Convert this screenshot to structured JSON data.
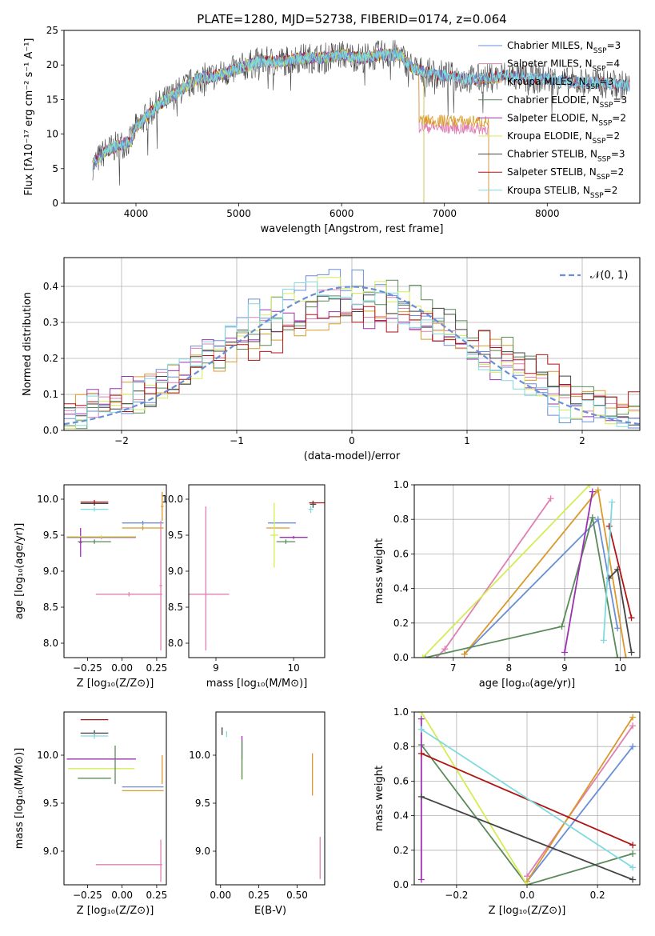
{
  "title": "PLATE=1280, MJD=52738, FIBERID=0174, z=0.064",
  "colors": {
    "Chabrier MILES": "#6a8ed8",
    "Salpeter MILES": "#e07fb3",
    "Kroupa MILES": "#d99a2a",
    "Chabrier ELODIE": "#5a8a5a",
    "Salpeter ELODIE": "#9b30b0",
    "Kroupa ELODIE": "#d4ec55",
    "Chabrier STELIB": "#444444",
    "Salpeter STELIB": "#b01515",
    "Kroupa STELIB": "#7edbde"
  },
  "chart_data": [
    {
      "type": "line",
      "panel": "spectrum",
      "title": "PLATE=1280, MJD=52738, FIBERID=0174, z=0.064",
      "xlabel": "wavelength [Angstrom, rest frame]",
      "ylabel": "Flux [fλ10⁻¹⁷ erg cm⁻² s⁻¹ A⁻¹]",
      "xlim": [
        3300,
        8900
      ],
      "ylim": [
        0,
        25
      ],
      "xticks": [
        4000,
        5000,
        6000,
        7000,
        8000
      ],
      "yticks": [
        0,
        5,
        10,
        15,
        20,
        25
      ],
      "legend_position": "top-right",
      "legend": [
        "Chabrier MILES, N_SSP=3",
        "Salpeter MILES, N_SSP=4",
        "Kroupa MILES, N_SSP=3",
        "Chabrier ELODIE, N_SSP=3",
        "Salpeter ELODIE, N_SSP=2",
        "Kroupa ELODIE, N_SSP=2",
        "Chabrier STELIB, N_SSP=3",
        "Salpeter STELIB, N_SSP=2",
        "Kroupa STELIB, N_SSP=2"
      ],
      "continuum_x": [
        3580,
        3700,
        3850,
        3950,
        4000,
        4100,
        4200,
        4400,
        4600,
        4800,
        5000,
        5200,
        5400,
        5600,
        5800,
        6000,
        6200,
        6400,
        6560,
        6700,
        6800,
        7000,
        7200,
        7400,
        7600,
        7800,
        8000,
        8200,
        8400,
        8800
      ],
      "continuum_y": [
        5.5,
        7.5,
        8.5,
        9,
        11,
        12.5,
        14,
        16,
        18,
        18.5,
        19.5,
        20.5,
        20.5,
        21,
        21,
        21.5,
        21,
        21.5,
        21.5,
        19.5,
        19,
        18.5,
        18,
        18,
        18.5,
        18,
        18,
        17.5,
        17.5,
        17
      ],
      "model_ends": [
        {
          "name": "Salpeter MILES",
          "end": 7430,
          "tail_level": 11
        },
        {
          "name": "Kroupa MILES",
          "end": 7430,
          "tail_level": 12
        },
        {
          "name": "Chabrier ELODIE",
          "end": 6800,
          "tail_level": null
        },
        {
          "name": "Salpeter ELODIE",
          "end": 6800,
          "tail_level": null
        },
        {
          "name": "Kroupa ELODIE",
          "end": 6800,
          "tail_level": null
        }
      ]
    },
    {
      "type": "histogram",
      "panel": "residuals",
      "xlabel": "(data-model)/error",
      "ylabel": "Normed distribution",
      "xlim": [
        -2.5,
        2.5
      ],
      "ylim": [
        0,
        0.48
      ],
      "xticks": [
        -2,
        -1,
        0,
        1,
        2
      ],
      "yticks": [
        0.0,
        0.1,
        0.2,
        0.3,
        0.4
      ],
      "grid": true,
      "legend_position": "top-right",
      "legend": [
        "𝒩(0, 1)"
      ],
      "reference_curve": {
        "name": "𝒩(0, 1)",
        "mean": 0,
        "sigma": 1,
        "color": "#6a8ed8"
      }
    },
    {
      "type": "errorbar",
      "panel": "age-vs-Z",
      "xlabel": "Z [log₁₀(Z/Z⊙)]",
      "ylabel": "age  [log₁₀(age/yr)]",
      "xlim": [
        -0.42,
        0.32
      ],
      "ylim": [
        7.8,
        10.2
      ],
      "xticks": [
        -0.25,
        0.0,
        0.25
      ],
      "yticks": [
        8.0,
        8.5,
        9.0,
        9.5,
        10.0
      ],
      "points": [
        {
          "name": "Chabrier MILES",
          "x": 0.15,
          "y": 9.67,
          "xerr": 0.15,
          "yerr": 0.03
        },
        {
          "name": "Salpeter MILES",
          "x": 0.05,
          "y": 8.68,
          "xerr": 0.24,
          "yerr": 0.03
        },
        {
          "name": "Salpeter MILES",
          "x": 0.28,
          "y": 8.8,
          "xerr": 0.01,
          "yerr": 0.9
        },
        {
          "name": "Kroupa MILES",
          "x": 0.15,
          "y": 9.6,
          "xerr": 0.15,
          "yerr": 0.03
        },
        {
          "name": "Kroupa MILES",
          "x": 0.29,
          "y": 9.9,
          "xerr": 0.01,
          "yerr": 0.2
        },
        {
          "name": "Chabrier ELODIE",
          "x": -0.2,
          "y": 9.41,
          "xerr": 0.12,
          "yerr": 0.03
        },
        {
          "name": "Salpeter ELODIE",
          "x": -0.15,
          "y": 9.47,
          "xerr": 0.25,
          "yerr": 0.02
        },
        {
          "name": "Salpeter ELODIE",
          "x": -0.3,
          "y": 9.4,
          "xerr": 0.01,
          "yerr": 0.2
        },
        {
          "name": "Kroupa ELODIE",
          "x": -0.15,
          "y": 9.48,
          "xerr": 0.25,
          "yerr": 0.02
        },
        {
          "name": "Chabrier STELIB",
          "x": -0.2,
          "y": 9.94,
          "xerr": 0.1,
          "yerr": 0.03
        },
        {
          "name": "Salpeter STELIB",
          "x": -0.2,
          "y": 9.96,
          "xerr": 0.1,
          "yerr": 0.03
        },
        {
          "name": "Kroupa STELIB",
          "x": -0.2,
          "y": 9.86,
          "xerr": 0.1,
          "yerr": 0.03
        }
      ]
    },
    {
      "type": "errorbar",
      "panel": "age-vs-mass",
      "xlabel": "mass [log₁₀(M/M⊙)]",
      "xlim": [
        8.65,
        10.4
      ],
      "ylim": [
        7.8,
        10.2
      ],
      "xticks": [
        9,
        10
      ],
      "yticks": [
        8.0,
        8.5,
        9.0,
        9.5,
        10.0
      ],
      "points": [
        {
          "name": "Salpeter MILES",
          "x": 8.87,
          "y": 8.68,
          "xerr": 0.3,
          "yerr": 0.0
        },
        {
          "name": "Salpeter MILES",
          "x": 8.87,
          "y": 8.9,
          "xerr": 0.0,
          "yerr": 1.0
        },
        {
          "name": "Chabrier MILES",
          "x": 9.85,
          "y": 9.67,
          "xerr": 0.18,
          "yerr": 0.0
        },
        {
          "name": "Kroupa MILES",
          "x": 9.8,
          "y": 9.6,
          "xerr": 0.15,
          "yerr": 0.0
        },
        {
          "name": "Chabrier ELODIE",
          "x": 9.9,
          "y": 9.41,
          "xerr": 0.12,
          "yerr": 0.03
        },
        {
          "name": "Salpeter ELODIE",
          "x": 10.0,
          "y": 9.47,
          "xerr": 0.18,
          "yerr": 0.02
        },
        {
          "name": "Kroupa ELODIE",
          "x": 9.75,
          "y": 9.5,
          "xerr": 0.05,
          "yerr": 0.45
        },
        {
          "name": "Chabrier STELIB",
          "x": 10.25,
          "y": 9.93,
          "xerr": 0.04,
          "yerr": 0.05
        },
        {
          "name": "Salpeter STELIB",
          "x": 10.3,
          "y": 9.95,
          "xerr": 0.1,
          "yerr": 0.0
        },
        {
          "name": "Kroupa STELIB",
          "x": 10.22,
          "y": 9.86,
          "xerr": 0.03,
          "yerr": 0.05
        }
      ]
    },
    {
      "type": "line",
      "panel": "mass-weight-vs-age",
      "xlabel": "age  [log₁₀(age/yr)]",
      "ylabel": "mass weight",
      "xlim": [
        6.3,
        10.35
      ],
      "ylim": [
        0,
        1
      ],
      "xticks": [
        7,
        8,
        9,
        10
      ],
      "yticks": [
        0.0,
        0.2,
        0.4,
        0.6,
        0.8,
        1.0
      ],
      "grid": true,
      "series": [
        {
          "name": "Chabrier MILES",
          "x": [
            7.2,
            9.6,
            9.95
          ],
          "y": [
            0.02,
            0.8,
            0.17
          ]
        },
        {
          "name": "Salpeter MILES",
          "x": [
            6.7,
            6.85,
            8.75
          ],
          "y": [
            0.0,
            0.05,
            0.92
          ]
        },
        {
          "name": "Kroupa MILES",
          "x": [
            7.2,
            9.6,
            10.1
          ],
          "y": [
            0.02,
            0.97,
            0.0
          ]
        },
        {
          "name": "Chabrier ELODIE",
          "x": [
            6.5,
            8.95,
            9.5,
            9.95
          ],
          "y": [
            0.0,
            0.18,
            0.81,
            0.0
          ]
        },
        {
          "name": "Salpeter ELODIE",
          "x": [
            9.0,
            9.5
          ],
          "y": [
            0.03,
            0.96
          ]
        },
        {
          "name": "Kroupa ELODIE",
          "x": [
            6.45,
            9.45
          ],
          "y": [
            0.0,
            1.0
          ]
        },
        {
          "name": "Chabrier STELIB",
          "x": [
            9.8,
            9.95,
            10.2
          ],
          "y": [
            0.46,
            0.51,
            0.03
          ]
        },
        {
          "name": "Salpeter STELIB",
          "x": [
            9.8,
            10.2
          ],
          "y": [
            0.76,
            0.23
          ]
        },
        {
          "name": "Kroupa STELIB",
          "x": [
            9.7,
            9.85
          ],
          "y": [
            0.1,
            0.9
          ]
        }
      ]
    },
    {
      "type": "errorbar",
      "panel": "mass-vs-Z",
      "xlabel": "Z [log₁₀(Z/Z⊙)]",
      "ylabel": "mass [log₁₀(M/M⊙)]",
      "xlim": [
        -0.42,
        0.32
      ],
      "ylim": [
        8.65,
        10.45
      ],
      "xticks": [
        -0.25,
        0.0,
        0.25
      ],
      "yticks": [
        9.0,
        9.5,
        10.0
      ],
      "points": [
        {
          "name": "Salpeter STELIB",
          "x": -0.2,
          "y": 10.37,
          "xerr": 0.1,
          "yerr": 0.0
        },
        {
          "name": "Chabrier STELIB",
          "x": -0.2,
          "y": 10.23,
          "xerr": 0.1,
          "yerr": 0.03
        },
        {
          "name": "Kroupa STELIB",
          "x": -0.2,
          "y": 10.2,
          "xerr": 0.1,
          "yerr": 0.03
        },
        {
          "name": "Salpeter ELODIE",
          "x": -0.15,
          "y": 9.96,
          "xerr": 0.25,
          "yerr": 0.0
        },
        {
          "name": "Kroupa ELODIE",
          "x": -0.15,
          "y": 9.86,
          "xerr": 0.24,
          "yerr": 0.0
        },
        {
          "name": "Chabrier ELODIE",
          "x": -0.2,
          "y": 9.76,
          "xerr": 0.12,
          "yerr": 0.0
        },
        {
          "name": "Chabrier ELODIE",
          "x": -0.05,
          "y": 9.9,
          "xerr": 0.0,
          "yerr": 0.2
        },
        {
          "name": "Chabrier MILES",
          "x": 0.15,
          "y": 9.67,
          "xerr": 0.15,
          "yerr": 0.0
        },
        {
          "name": "Kroupa MILES",
          "x": 0.15,
          "y": 9.63,
          "xerr": 0.15,
          "yerr": 0.0
        },
        {
          "name": "Kroupa MILES",
          "x": 0.29,
          "y": 9.85,
          "xerr": 0.0,
          "yerr": 0.15
        },
        {
          "name": "Salpeter MILES",
          "x": 0.05,
          "y": 8.86,
          "xerr": 0.24,
          "yerr": 0.0
        },
        {
          "name": "Salpeter MILES",
          "x": 0.28,
          "y": 8.9,
          "xerr": 0.0,
          "yerr": 0.22
        }
      ]
    },
    {
      "type": "errorbar",
      "panel": "mass-vs-EBV",
      "xlabel": "E(B-V)",
      "xlim": [
        -0.03,
        0.68
      ],
      "ylim": [
        8.65,
        10.45
      ],
      "xticks": [
        0.0,
        0.25,
        0.5
      ],
      "yticks": [
        9.0,
        9.5,
        10.0
      ],
      "points": [
        {
          "name": "Chabrier STELIB",
          "x": 0.01,
          "y": 10.25,
          "xerr": 0.0,
          "yerr": 0.04
        },
        {
          "name": "Kroupa STELIB",
          "x": 0.04,
          "y": 10.22,
          "xerr": 0.0,
          "yerr": 0.03
        },
        {
          "name": "Salpeter ELODIE",
          "x": 0.14,
          "y": 10.08,
          "xerr": 0.0,
          "yerr": 0.12
        },
        {
          "name": "Kroupa ELODIE",
          "x": 0.14,
          "y": 9.86,
          "xerr": 0.0,
          "yerr": 0.12
        },
        {
          "name": "Chabrier ELODIE",
          "x": 0.14,
          "y": 9.95,
          "xerr": 0.0,
          "yerr": 0.2
        },
        {
          "name": "Kroupa MILES",
          "x": 0.6,
          "y": 9.8,
          "xerr": 0.0,
          "yerr": 0.22
        },
        {
          "name": "Salpeter MILES",
          "x": 0.65,
          "y": 8.93,
          "xerr": 0.0,
          "yerr": 0.22
        }
      ]
    },
    {
      "type": "line",
      "panel": "mass-weight-vs-Z",
      "xlabel": "Z [log₁₀(Z/Z⊙)]",
      "ylabel": "mass weight",
      "xlim": [
        -0.32,
        0.32
      ],
      "ylim": [
        0,
        1
      ],
      "xticks": [
        -0.2,
        0.0,
        0.2
      ],
      "yticks": [
        0.0,
        0.2,
        0.4,
        0.6,
        0.8,
        1.0
      ],
      "grid": true,
      "series": [
        {
          "name": "Chabrier MILES",
          "x": [
            0.0,
            0.3
          ],
          "y": [
            0.02,
            0.8
          ]
        },
        {
          "name": "Salpeter MILES",
          "x": [
            0.0,
            0.3
          ],
          "y": [
            0.05,
            0.92
          ]
        },
        {
          "name": "Kroupa MILES",
          "x": [
            0.0,
            0.3
          ],
          "y": [
            0.02,
            0.97
          ]
        },
        {
          "name": "Chabrier ELODIE",
          "x": [
            -0.3,
            0.0,
            0.3
          ],
          "y": [
            0.81,
            0.0,
            0.18
          ]
        },
        {
          "name": "Salpeter ELODIE",
          "x": [
            -0.3,
            -0.3
          ],
          "y": [
            0.03,
            0.96
          ]
        },
        {
          "name": "Kroupa ELODIE",
          "x": [
            -0.3,
            0.0
          ],
          "y": [
            1.0,
            0.0
          ]
        },
        {
          "name": "Chabrier STELIB",
          "x": [
            -0.3,
            0.3
          ],
          "y": [
            0.51,
            0.03
          ]
        },
        {
          "name": "Salpeter STELIB",
          "x": [
            -0.3,
            0.3
          ],
          "y": [
            0.76,
            0.23
          ]
        },
        {
          "name": "Kroupa STELIB",
          "x": [
            -0.3,
            0.3
          ],
          "y": [
            0.9,
            0.1
          ]
        }
      ]
    }
  ]
}
